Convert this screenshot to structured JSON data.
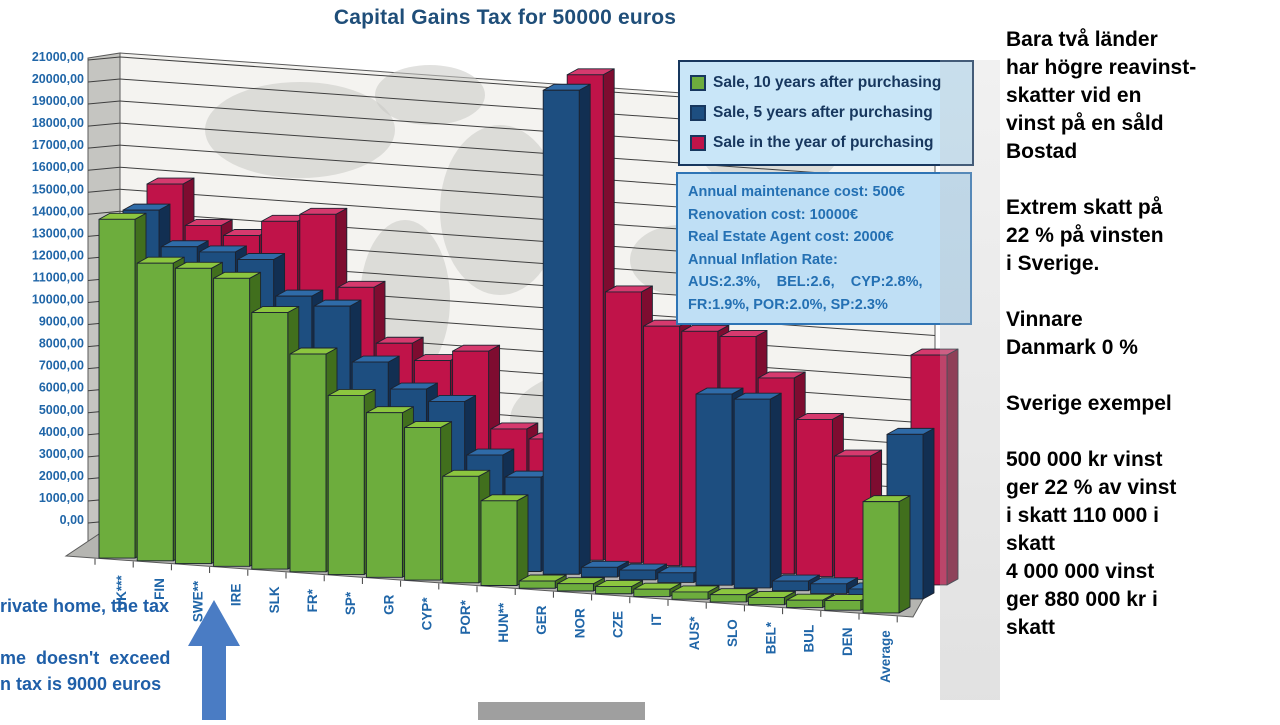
{
  "colors": {
    "title": "#1f4e79",
    "axis_text": "#2066a8",
    "legend_border": "#17375e",
    "legend_bg": "#c9e6f8",
    "info_bg": "#bfdff5",
    "info_border": "#2e74b5",
    "arrow_blue": "#4a7cc4",
    "green_front": "#6dad3d",
    "green_top": "#8cc63f",
    "green_side": "#416f1d",
    "blue_front": "#1d4e80",
    "blue_top": "#2f6ba8",
    "blue_side": "#122f52",
    "red_front": "#c01349",
    "red_top": "#d63a6e",
    "red_side": "#7e0c30"
  },
  "chart": {
    "title": "Capital Gains Tax for 50000 euros",
    "y_axis": {
      "ticks": [
        "21000,00",
        "20000,00",
        "19000,00",
        "18000,00",
        "17000,00",
        "16000,00",
        "15000,00",
        "14000,00",
        "13000,00",
        "12000,00",
        "11000,00",
        "10000,00",
        "9000,00",
        "8000,00",
        "7000,00",
        "6000,00",
        "5000,00",
        "4000,00",
        "3000,00",
        "2000,00",
        "1000,00",
        "0,00"
      ]
    },
    "info_box": {
      "lines": [
        "Annual maintenance cost: 500€",
        "Renovation cost: 10000€",
        "Real Estate Agent cost: 2000€",
        "Annual Inflation Rate:",
        "AUS:2.3%,    BEL:2.6,    CYP:2.8%,",
        "FR:1.9%, POR:2.0%, SP:2.3%"
      ]
    }
  },
  "chart_data": {
    "type": "bar",
    "variant": "3d-column",
    "title": "Capital Gains Tax for 50000 euros",
    "xlabel": "",
    "ylabel": "euros",
    "ylim": [
      0,
      21000
    ],
    "y_tick_step": 1000,
    "grid": true,
    "legend_position": "top-right",
    "categories": [
      "UK***",
      "FIN",
      "SWE**",
      "IRE",
      "SLK",
      "FR*",
      "SP*",
      "GR",
      "CYP*",
      "POR*",
      "HUN**",
      "GER",
      "NOR",
      "CZE",
      "IT",
      "AUS*",
      "SLO",
      "BEL*",
      "BUL",
      "DEN",
      "Average"
    ],
    "series": [
      {
        "name": "Sale, 10 years after purchasing",
        "color": "#6dad3d",
        "values": [
          14000,
          12300,
          12200,
          11900,
          10600,
          9000,
          7400,
          6800,
          6300,
          4400,
          3500,
          300,
          300,
          300,
          300,
          300,
          300,
          300,
          300,
          400,
          4600
        ]
      },
      {
        "name": "Sale, 5 years after purchasing",
        "color": "#1d4e80",
        "values": [
          13800,
          12400,
          12300,
          12100,
          10700,
          10400,
          8200,
          7200,
          6800,
          4700,
          3900,
          20000,
          400,
          400,
          400,
          7900,
          7800,
          400,
          400,
          300,
          6800
        ]
      },
      {
        "name": "Sale in the year of purchasing",
        "color": "#c01349",
        "values": [
          14300,
          12700,
          12400,
          13100,
          13500,
          10600,
          8400,
          7800,
          8300,
          5200,
          4900,
          20300,
          11200,
          9900,
          9800,
          9700,
          8100,
          6500,
          5100,
          500,
          9500
        ]
      }
    ]
  },
  "overlay": {
    "clipped_lines": [
      "rivate home, the tax",
      "me  doesn't  exceed",
      "n tax is 9000 euros"
    ],
    "arrow": "up-arrow pointing at SWE**"
  },
  "right_panel": {
    "paragraphs": [
      "Bara två länder\nhar högre reavinst-\nskatter vid en\nvinst på en såld\nBostad",
      "Extrem skatt på\n22 % på vinsten\ni Sverige.",
      "Vinnare\nDanmark 0 %",
      "Sverige exempel",
      "500 000 kr vinst\nger 22 % av vinst\ni skatt 110 000 i\nskatt\n4 000 000 vinst\nger 880 000 kr i\nskatt"
    ]
  }
}
